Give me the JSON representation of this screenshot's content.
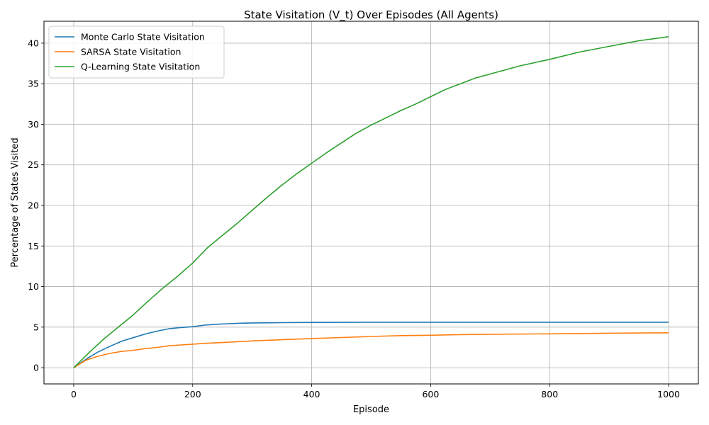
{
  "chart_data": {
    "type": "line",
    "title": "State Visitation (V_t) Over Episodes (All Agents)",
    "xlabel": "Episode",
    "ylabel": "Percentage of States Visited",
    "xlim": [
      -50,
      1050
    ],
    "ylim": [
      -2,
      42.7
    ],
    "xticks": [
      0,
      200,
      400,
      600,
      800,
      1000
    ],
    "yticks": [
      0,
      5,
      10,
      15,
      20,
      25,
      30,
      35,
      40
    ],
    "grid": true,
    "legend": "top-left",
    "series": [
      {
        "name": "Monte Carlo State Visitation",
        "color": "#1f77b4",
        "x": [
          0,
          20,
          40,
          60,
          80,
          100,
          120,
          140,
          160,
          180,
          200,
          220,
          240,
          260,
          280,
          300,
          350,
          400,
          500,
          600,
          700,
          800,
          900,
          1000
        ],
        "y": [
          0,
          1.0,
          1.9,
          2.6,
          3.25,
          3.7,
          4.15,
          4.5,
          4.8,
          4.95,
          5.05,
          5.25,
          5.35,
          5.42,
          5.48,
          5.52,
          5.55,
          5.58,
          5.6,
          5.6,
          5.6,
          5.6,
          5.6,
          5.6
        ]
      },
      {
        "name": "SARSA State Visitation",
        "color": "#ff7f0e",
        "x": [
          0,
          20,
          40,
          60,
          80,
          100,
          120,
          140,
          160,
          180,
          200,
          220,
          250,
          300,
          350,
          400,
          450,
          500,
          550,
          600,
          650,
          700,
          800,
          900,
          1000
        ],
        "y": [
          0,
          0.9,
          1.4,
          1.75,
          2.0,
          2.15,
          2.35,
          2.5,
          2.7,
          2.8,
          2.9,
          3.0,
          3.1,
          3.3,
          3.45,
          3.6,
          3.72,
          3.85,
          3.95,
          4.0,
          4.08,
          4.12,
          4.17,
          4.25,
          4.3
        ]
      },
      {
        "name": "Q-Learning State Visitation",
        "color": "#2ca02c",
        "x": [
          0,
          25,
          50,
          75,
          100,
          125,
          150,
          175,
          200,
          225,
          250,
          275,
          300,
          325,
          350,
          375,
          400,
          425,
          450,
          475,
          500,
          525,
          550,
          575,
          600,
          625,
          650,
          675,
          700,
          750,
          800,
          850,
          900,
          950,
          1000
        ],
        "y": [
          0,
          1.8,
          3.5,
          5.0,
          6.5,
          8.2,
          9.8,
          11.3,
          12.9,
          14.8,
          16.3,
          17.8,
          19.4,
          21.0,
          22.5,
          23.9,
          25.2,
          26.5,
          27.7,
          28.9,
          29.9,
          30.8,
          31.7,
          32.5,
          33.4,
          34.3,
          35.0,
          35.7,
          36.2,
          37.2,
          38.0,
          38.9,
          39.6,
          40.3,
          40.8
        ]
      }
    ]
  }
}
